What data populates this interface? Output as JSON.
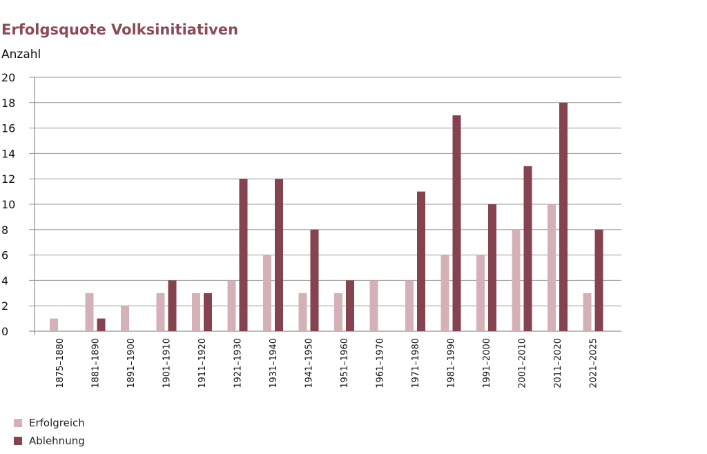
{
  "chart_data": {
    "type": "bar",
    "title": "Erfolgsquote Volksinitiativen",
    "ylabel": "Anzahl",
    "xlabel": "",
    "ylim": [
      0,
      20
    ],
    "yticks": [
      0,
      2,
      4,
      6,
      8,
      10,
      12,
      14,
      16,
      18,
      20
    ],
    "grid": true,
    "legend_position": "bottom-left",
    "categories": [
      "1875–1880",
      "1881–1890",
      "1891–1900",
      "1901–1910",
      "1911–1920",
      "1921–1930",
      "1931–1940",
      "1941–1950",
      "1951–1960",
      "1961–1970",
      "1971–1980",
      "1981–1990",
      "1991–2000",
      "2001–2010",
      "2011–2020",
      "2021–2025"
    ],
    "series": [
      {
        "name": "Erfolgreich",
        "color": "#d4b1b6",
        "values": [
          1,
          3,
          2,
          3,
          3,
          4,
          6,
          3,
          3,
          4,
          4,
          6,
          6,
          8,
          10,
          3
        ]
      },
      {
        "name": "Ablehnung",
        "color": "#85434f",
        "values": [
          0,
          1,
          0,
          4,
          3,
          12,
          12,
          8,
          4,
          0,
          11,
          17,
          10,
          13,
          18,
          8
        ]
      }
    ]
  }
}
